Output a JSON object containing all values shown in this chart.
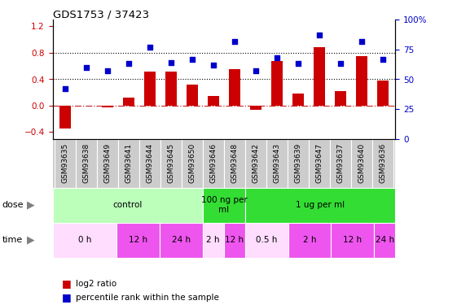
{
  "title": "GDS1753 / 37423",
  "samples": [
    "GSM93635",
    "GSM93638",
    "GSM93649",
    "GSM93641",
    "GSM93644",
    "GSM93645",
    "GSM93650",
    "GSM93646",
    "GSM93648",
    "GSM93642",
    "GSM93643",
    "GSM93639",
    "GSM93647",
    "GSM93637",
    "GSM93640",
    "GSM93636"
  ],
  "log2_ratio": [
    -0.35,
    0.0,
    -0.02,
    0.12,
    0.52,
    0.52,
    0.32,
    0.15,
    0.55,
    -0.06,
    0.68,
    0.18,
    0.88,
    0.22,
    0.75,
    0.38
  ],
  "percentile": [
    42,
    60,
    57,
    63,
    77,
    64,
    67,
    62,
    82,
    57,
    68,
    63,
    87,
    63,
    82,
    67
  ],
  "bar_color": "#cc0000",
  "dot_color": "#0000cc",
  "dose_groups": [
    {
      "label": "control",
      "start": 0,
      "end": 7,
      "color": "#bbffbb"
    },
    {
      "label": "100 ng per\nml",
      "start": 7,
      "end": 9,
      "color": "#33dd33"
    },
    {
      "label": "1 ug per ml",
      "start": 9,
      "end": 16,
      "color": "#33dd33"
    }
  ],
  "time_groups": [
    {
      "label": "0 h",
      "start": 0,
      "end": 3,
      "color": "#ffddff"
    },
    {
      "label": "12 h",
      "start": 3,
      "end": 5,
      "color": "#ee55ee"
    },
    {
      "label": "24 h",
      "start": 5,
      "end": 7,
      "color": "#ee55ee"
    },
    {
      "label": "2 h",
      "start": 7,
      "end": 8,
      "color": "#ffddff"
    },
    {
      "label": "12 h",
      "start": 8,
      "end": 9,
      "color": "#ee55ee"
    },
    {
      "label": "0.5 h",
      "start": 9,
      "end": 11,
      "color": "#ffddff"
    },
    {
      "label": "2 h",
      "start": 11,
      "end": 13,
      "color": "#ee55ee"
    },
    {
      "label": "12 h",
      "start": 13,
      "end": 15,
      "color": "#ee55ee"
    },
    {
      "label": "24 h",
      "start": 15,
      "end": 16,
      "color": "#ee55ee"
    }
  ],
  "ylim_left": [
    -0.5,
    1.3
  ],
  "ylim_right": [
    0,
    100
  ],
  "yticks_left": [
    -0.4,
    0.0,
    0.4,
    0.8,
    1.2
  ],
  "yticks_right": [
    0,
    25,
    50,
    75,
    100
  ],
  "hlines": [
    0.4,
    0.8
  ],
  "zero_line_color": "#cc3333",
  "background_color": "#ffffff",
  "sample_bg_color": "#cccccc"
}
